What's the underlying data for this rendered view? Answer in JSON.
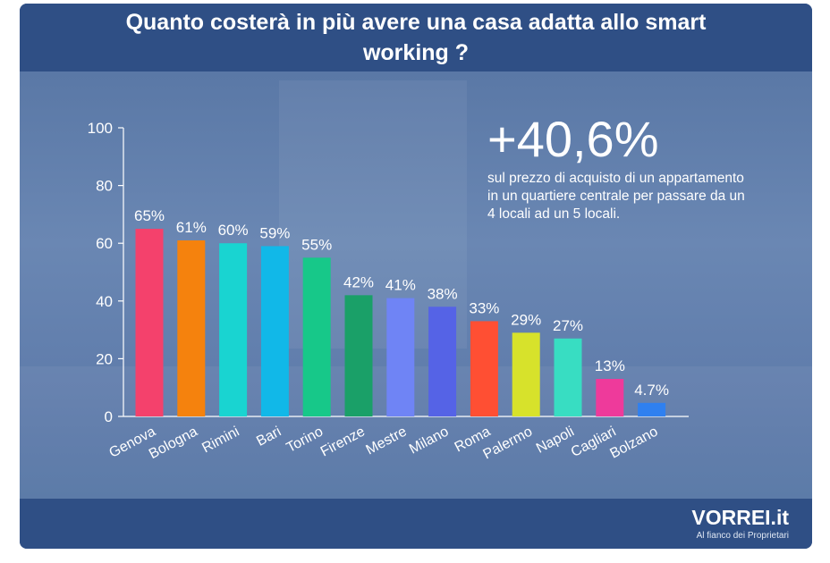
{
  "header": {
    "title": "Quanto costerà in più avere una casa adatta allo smart working ?"
  },
  "callout": {
    "value": "+40,6%",
    "text": "sul prezzo di acquisto di un appartamento in un quartiere centrale per passare da un 4 locali ad un 5 locali."
  },
  "footer": {
    "brand": "VORREI.it",
    "tagline": "Al fianco dei Proprietari"
  },
  "chart_data": {
    "type": "bar",
    "categories": [
      "Genova",
      "Bologna",
      "Rimini",
      "Bari",
      "Torino",
      "Firenze",
      "Mestre",
      "Milano",
      "Roma",
      "Palermo",
      "Napoli",
      "Cagliari",
      "Bolzano"
    ],
    "values": [
      65,
      61,
      60,
      59,
      55,
      42,
      41,
      38,
      33,
      29,
      27,
      13,
      4.7
    ],
    "labels": [
      "65%",
      "61%",
      "60%",
      "59%",
      "55%",
      "42%",
      "41%",
      "38%",
      "33%",
      "29%",
      "27%",
      "13%",
      "4.7%"
    ],
    "colors": [
      "#f4416c",
      "#f5820d",
      "#19d4d1",
      "#11b8e8",
      "#17c889",
      "#1aa068",
      "#6f84f5",
      "#5563e6",
      "#ff4f33",
      "#d7e22b",
      "#38ddc2",
      "#ee3a9b",
      "#2f80f0"
    ],
    "yticks": [
      0,
      20,
      40,
      60,
      80,
      100
    ],
    "ylim": [
      0,
      100
    ]
  },
  "colors": {
    "header_bg": "#2f4f85",
    "text": "#ffffff"
  }
}
